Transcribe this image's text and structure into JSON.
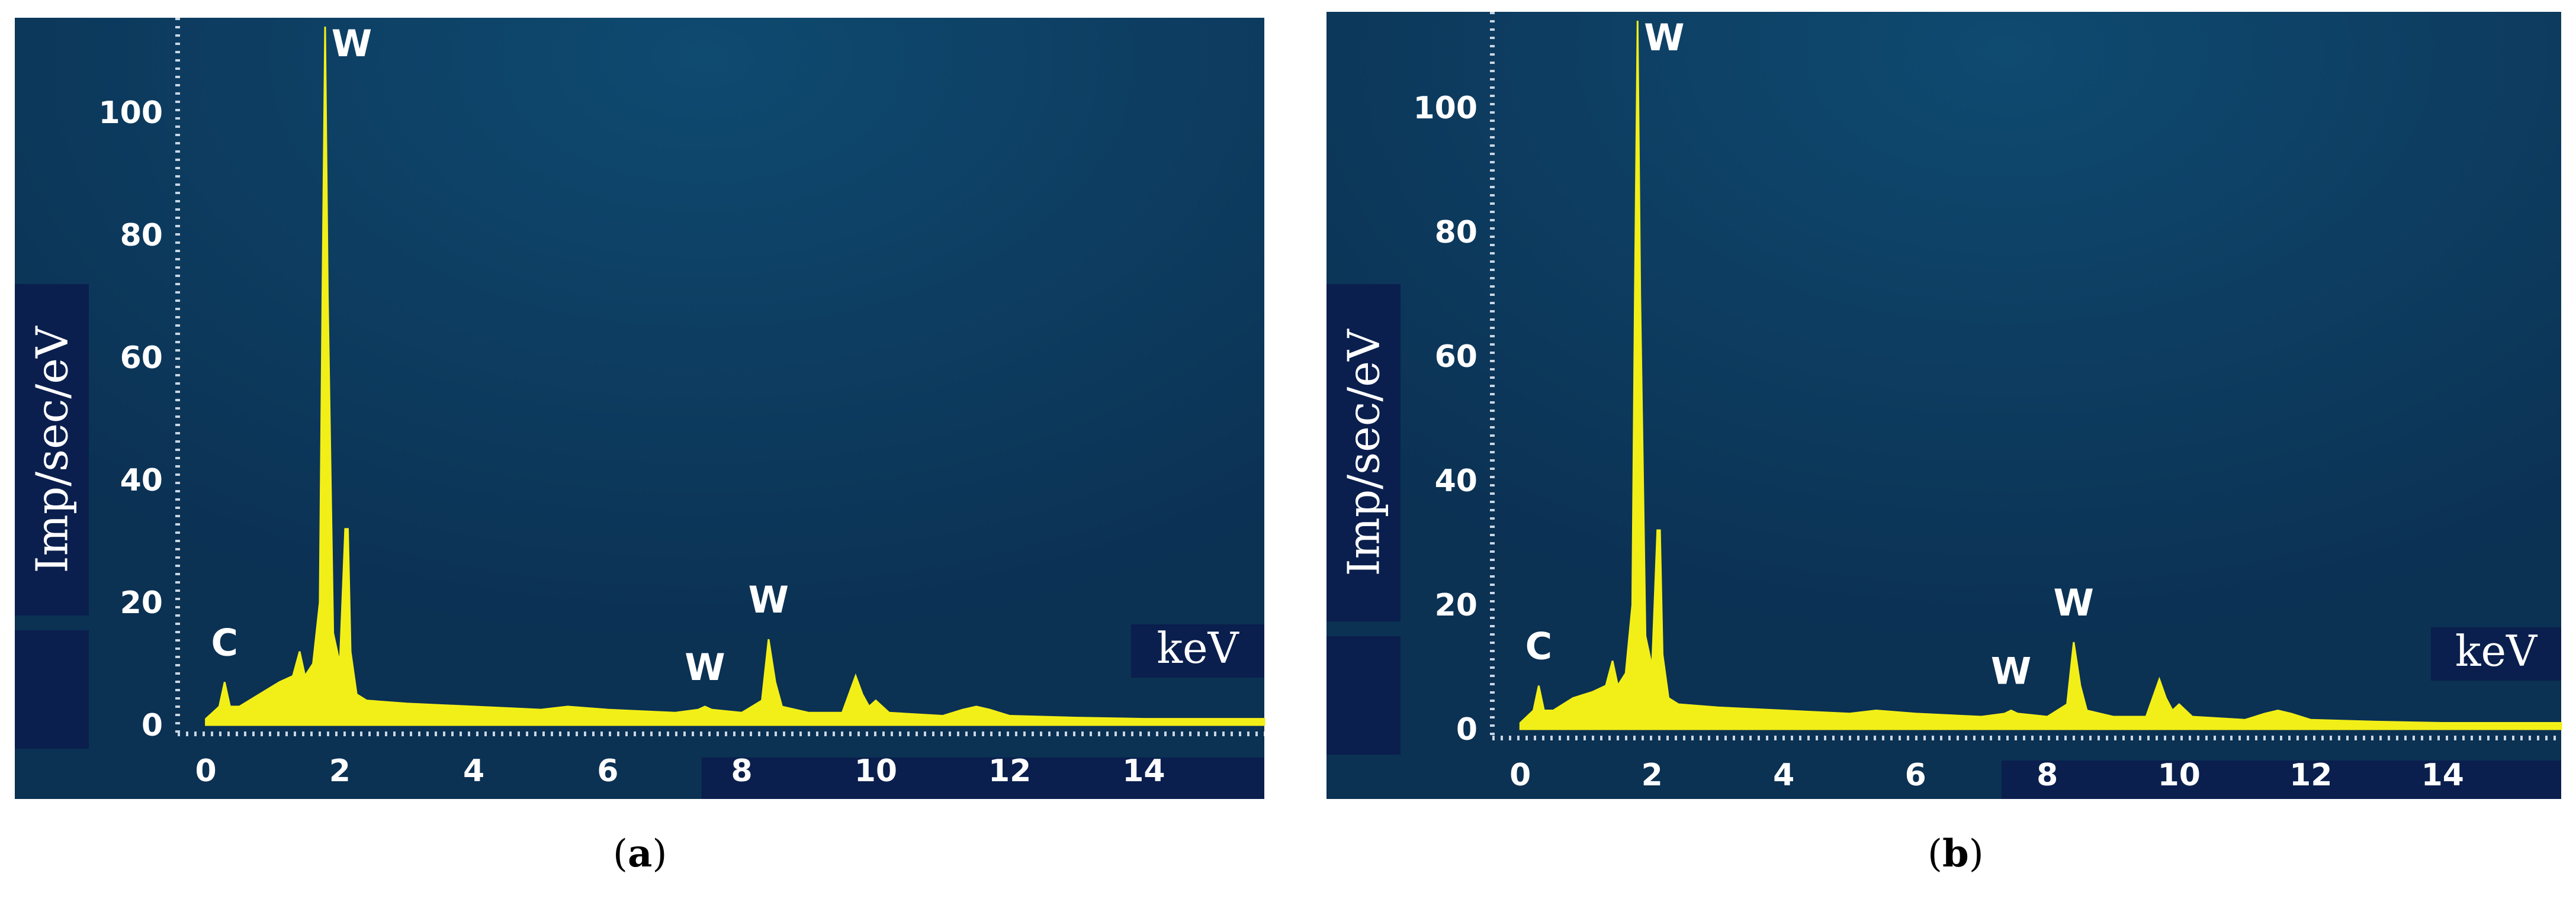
{
  "chart_data": [
    {
      "type": "line",
      "panel_label": "a",
      "ylabel": "Imp/sec/eV",
      "xlabel": "keV",
      "xlim": [
        -0.2,
        15.8
      ],
      "ylim": [
        0,
        114
      ],
      "x_ticks": [
        0,
        2,
        4,
        6,
        8,
        10,
        12,
        14
      ],
      "y_ticks": [
        0,
        20,
        40,
        60,
        80,
        100
      ],
      "grid": false,
      "colors": {
        "background": "#0b3153",
        "background_glow": "#0f4a70",
        "spectrum": "#f2ef18",
        "label_box": "#0a1f4d",
        "text": "#ffffff"
      },
      "series": [
        {
          "x": [
            0.0,
            0.1,
            0.2,
            0.28,
            0.36,
            0.5,
            0.8,
            1.1,
            1.3,
            1.4,
            1.48,
            1.6,
            1.7,
            1.74,
            1.78,
            1.82,
            1.9,
            2.0,
            2.08,
            2.12,
            2.16,
            2.25,
            2.4,
            3.0,
            4.0,
            5.0,
            5.4,
            6.0,
            7.0,
            7.35,
            7.45,
            7.55,
            8.0,
            8.3,
            8.4,
            8.5,
            8.6,
            9.0,
            9.5,
            9.6,
            9.7,
            9.8,
            9.9,
            10.0,
            10.2,
            11.0,
            11.3,
            11.5,
            11.7,
            12.0,
            13.0,
            14.0,
            15.0,
            15.8
          ],
          "y": [
            1,
            2,
            3,
            7,
            3,
            3,
            5,
            7,
            8,
            12,
            8,
            10,
            20,
            70,
            114,
            70,
            15,
            10,
            32,
            32,
            12,
            5,
            4,
            3.5,
            3,
            2.5,
            3,
            2.5,
            2,
            2.5,
            3,
            2.5,
            2,
            4,
            14,
            7,
            3,
            2,
            2,
            5,
            8,
            5,
            3,
            4,
            2,
            1.5,
            2.5,
            3,
            2.5,
            1.5,
            1.2,
            1,
            1,
            1
          ]
        }
      ],
      "annotations": [
        {
          "text": "W",
          "x": 1.78,
          "y": 114
        },
        {
          "text": "C",
          "x": 0.28,
          "y": 7
        },
        {
          "text": "W",
          "x": 7.45,
          "y": 3
        },
        {
          "text": "W",
          "x": 8.4,
          "y": 14
        }
      ]
    },
    {
      "type": "line",
      "panel_label": "b",
      "ylabel": "Imp/sec/eV",
      "xlabel": "keV",
      "xlim": [
        -0.2,
        15.8
      ],
      "ylim": [
        0,
        114
      ],
      "x_ticks": [
        0,
        2,
        4,
        6,
        8,
        10,
        12,
        14
      ],
      "y_ticks": [
        0,
        20,
        40,
        60,
        80,
        100
      ],
      "grid": false,
      "colors": {
        "background": "#0b3153",
        "background_glow": "#0f4a70",
        "spectrum": "#f2ef18",
        "label_box": "#0a1f4d",
        "text": "#ffffff"
      },
      "series": [
        {
          "x": [
            0.0,
            0.1,
            0.2,
            0.28,
            0.36,
            0.5,
            0.8,
            1.1,
            1.3,
            1.4,
            1.48,
            1.6,
            1.7,
            1.74,
            1.78,
            1.82,
            1.9,
            2.0,
            2.08,
            2.12,
            2.16,
            2.25,
            2.4,
            3.0,
            4.0,
            5.0,
            5.4,
            6.0,
            7.0,
            7.35,
            7.45,
            7.55,
            8.0,
            8.3,
            8.4,
            8.5,
            8.6,
            9.0,
            9.5,
            9.6,
            9.7,
            9.8,
            9.9,
            10.0,
            10.2,
            11.0,
            11.3,
            11.5,
            11.7,
            12.0,
            13.0,
            14.0,
            15.0,
            15.8
          ],
          "y": [
            1,
            2,
            3,
            7,
            3,
            3,
            5,
            6,
            7,
            11,
            7,
            9,
            20,
            70,
            114,
            70,
            15,
            10,
            32,
            32,
            12,
            5,
            4,
            3.5,
            3,
            2.5,
            3,
            2.5,
            2,
            2.5,
            3,
            2.5,
            2,
            4,
            14,
            7,
            3,
            2,
            2,
            5,
            8,
            5,
            3,
            4,
            2,
            1.5,
            2.5,
            3,
            2.5,
            1.5,
            1.2,
            1,
            1,
            1
          ]
        }
      ],
      "annotations": [
        {
          "text": "W",
          "x": 1.78,
          "y": 114
        },
        {
          "text": "C",
          "x": 0.28,
          "y": 7
        },
        {
          "text": "W",
          "x": 7.45,
          "y": 3
        },
        {
          "text": "W",
          "x": 8.4,
          "y": 14
        }
      ]
    }
  ],
  "captions": [
    {
      "open": "(",
      "label": "a",
      "close": ")"
    },
    {
      "open": "(",
      "label": "b",
      "close": ")"
    }
  ]
}
